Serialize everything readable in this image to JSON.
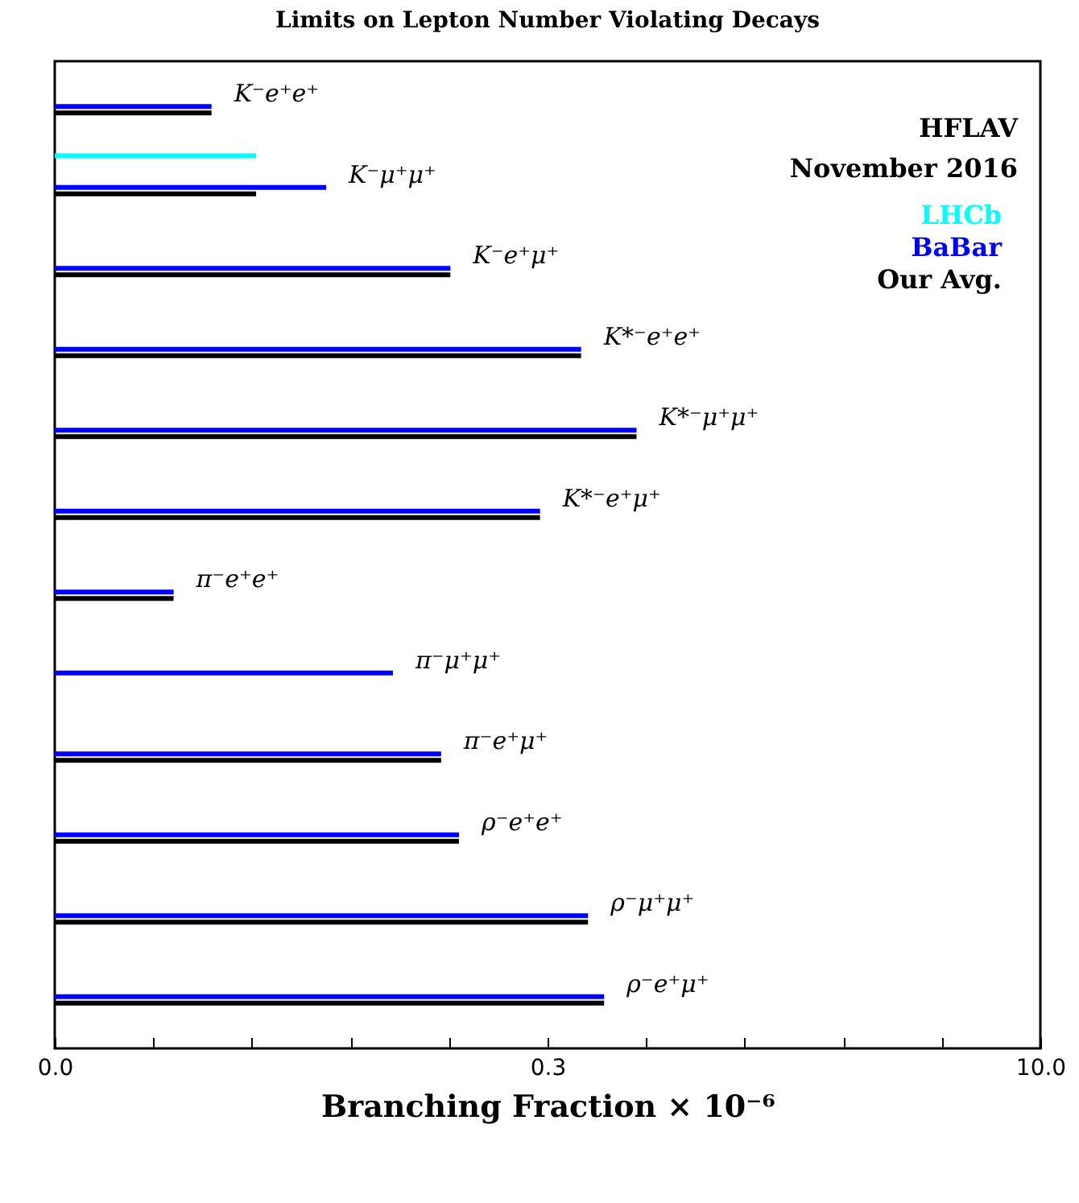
{
  "chart_data": {
    "type": "bar",
    "orientation": "horizontal",
    "title": "Limits on Lepton Number Violating Decays",
    "xlabel": "Branching Fraction × 10⁻⁶",
    "categories": [
      "K⁻e⁺e⁺",
      "K⁻μ⁺μ⁺",
      "K⁻e⁺μ⁺",
      "K*⁻e⁺e⁺",
      "K*⁻μ⁺μ⁺",
      "K*⁻e⁺μ⁺",
      "π⁻e⁺e⁺",
      "π⁻μ⁺μ⁺",
      "π⁻e⁺μ⁺",
      "ρ⁻e⁺e⁺",
      "ρ⁻μ⁺μ⁺",
      "ρ⁻e⁺μ⁺"
    ],
    "series": [
      {
        "name": "LHCb",
        "color": "#00ffff",
        "values": [
          null,
          0.041,
          null,
          null,
          null,
          null,
          null,
          null,
          null,
          null,
          null,
          null
        ]
      },
      {
        "name": "BaBar",
        "color": "#0000ff",
        "values": [
          0.03,
          0.067,
          0.16,
          0.4,
          0.59,
          0.3,
          0.023,
          0.107,
          0.15,
          0.17,
          0.42,
          0.47
        ]
      },
      {
        "name": "Our Avg.",
        "color": "#000000",
        "values": [
          0.03,
          0.041,
          0.16,
          0.4,
          0.59,
          0.3,
          0.023,
          null,
          0.15,
          0.17,
          0.42,
          0.47
        ]
      }
    ],
    "log": "x",
    "xlim": [
      0.01,
      10
    ],
    "xticks": [
      {
        "value": 0.01,
        "label": "0.0"
      },
      {
        "value": 0.02,
        "label": null
      },
      {
        "value": 0.0398,
        "label": null
      },
      {
        "value": 0.0794,
        "label": null
      },
      {
        "value": 0.1585,
        "label": null
      },
      {
        "value": 0.3162,
        "label": "0.3"
      },
      {
        "value": 0.631,
        "label": null
      },
      {
        "value": 1.259,
        "label": null
      },
      {
        "value": 2.512,
        "label": null
      },
      {
        "value": 5.012,
        "label": null
      },
      {
        "value": 10,
        "label": "10.0"
      }
    ],
    "legend": "top right",
    "annotations": [
      "HFLAV",
      "November 2016"
    ]
  }
}
